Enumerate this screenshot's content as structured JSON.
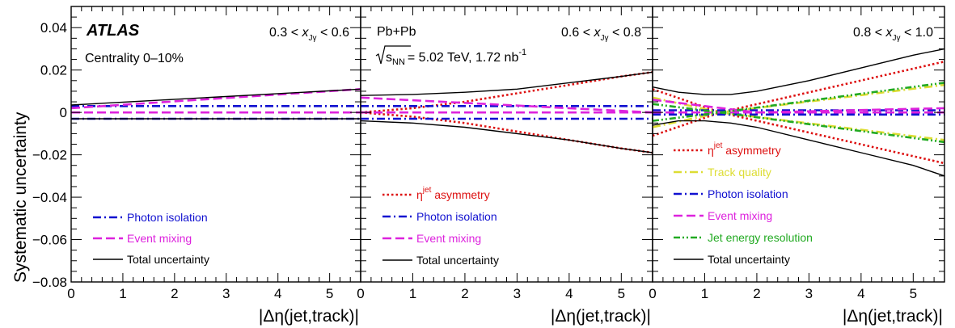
{
  "figure": {
    "ylabel": "Systematic uncertainty",
    "xlabel": "|Δη(jet,track)|",
    "brand": "ATLAS",
    "centrality": "Centrality 0–10%",
    "system": "Pb+Pb",
    "sqrt_s": "s",
    "sqrt_s_sub": "NN",
    "energy": "= 5.02 TeV, 1.72 nb",
    "lumi_sup": "-1",
    "bin_prefix": "<",
    "bin_var": "x",
    "bin_var_sub": "Jγ"
  },
  "chart_data": [
    {
      "type": "line",
      "panel": "left",
      "bin_lo": "0.3",
      "bin_hi": "0.6",
      "xlim": [
        0,
        5.6
      ],
      "ylim": [
        -0.08,
        0.05
      ],
      "xticks": [
        0,
        1,
        2,
        3,
        4,
        5
      ],
      "yticks": [
        -0.08,
        -0.06,
        -0.04,
        -0.02,
        0,
        0.02,
        0.04
      ],
      "ytick_labels": [
        "−0.08",
        "−0.06",
        "−0.04",
        "−0.02",
        "0",
        "0.02",
        "0.04"
      ],
      "grid": false,
      "legend_position": "bottom-left",
      "series": [
        {
          "name": "Photon isolation",
          "color": "#1010d0",
          "style": "dashdot",
          "x": [
            0,
            5.6
          ],
          "upper": [
            0.003,
            0.003
          ],
          "lower": [
            -0.003,
            -0.003
          ]
        },
        {
          "name": "Event mixing",
          "color": "#dd22dd",
          "style": "dashed",
          "x": [
            0,
            5.6
          ],
          "upper": [
            0.002,
            0.011
          ],
          "lower": [
            0.0,
            0.0
          ]
        },
        {
          "name": "Total uncertainty",
          "color": "#000000",
          "style": "solid",
          "x": [
            0,
            5.6
          ],
          "upper": [
            0.0035,
            0.011
          ],
          "lower": [
            -0.003,
            -0.003
          ]
        }
      ]
    },
    {
      "type": "line",
      "panel": "middle",
      "bin_lo": "0.6",
      "bin_hi": "0.8",
      "xlim": [
        0,
        5.6
      ],
      "ylim": [
        -0.08,
        0.05
      ],
      "xticks": [
        0,
        1,
        2,
        3,
        4,
        5
      ],
      "grid": false,
      "legend_position": "bottom-left",
      "series": [
        {
          "name": "η^jet asymmetry",
          "color": "#dd1111",
          "style": "dotted",
          "x": [
            0,
            1,
            2,
            3,
            4,
            5,
            5.6
          ],
          "upper": [
            0.0,
            0.002,
            0.005,
            0.009,
            0.013,
            0.017,
            0.019
          ],
          "lower": [
            0.0,
            -0.002,
            -0.005,
            -0.009,
            -0.013,
            -0.017,
            -0.019
          ]
        },
        {
          "name": "Photon isolation",
          "color": "#1010d0",
          "style": "dashdot",
          "x": [
            0,
            5.6
          ],
          "upper": [
            0.003,
            0.003
          ],
          "lower": [
            -0.003,
            -0.003
          ]
        },
        {
          "name": "Event mixing",
          "color": "#dd22dd",
          "style": "dashed",
          "x": [
            0,
            5.6
          ],
          "upper": [
            0.007,
            0.0
          ],
          "lower": [
            0.0,
            0.0
          ]
        },
        {
          "name": "Total uncertainty",
          "color": "#000000",
          "style": "solid",
          "x": [
            0,
            1,
            2,
            3,
            4,
            5,
            5.6
          ],
          "upper": [
            0.008,
            0.0085,
            0.0095,
            0.011,
            0.014,
            0.017,
            0.019
          ],
          "lower": [
            -0.004,
            -0.005,
            -0.007,
            -0.01,
            -0.013,
            -0.017,
            -0.019
          ]
        }
      ]
    },
    {
      "type": "line",
      "panel": "right",
      "bin_lo": "0.8",
      "bin_hi": "1.0",
      "xlim": [
        0,
        5.6
      ],
      "ylim": [
        -0.08,
        0.05
      ],
      "xticks": [
        0,
        1,
        2,
        3,
        4,
        5
      ],
      "grid": false,
      "legend_position": "bottom-left",
      "series": [
        {
          "name": "η^jet asymmetry",
          "color": "#dd1111",
          "style": "dotted",
          "x": [
            0,
            1.3,
            5.6
          ],
          "upper": [
            0.011,
            0.0,
            0.024
          ],
          "lower": [
            -0.011,
            0.0,
            -0.024
          ]
        },
        {
          "name": "Track quality",
          "color": "#dddd33",
          "style": "dashdot",
          "x": [
            0,
            1.3,
            5.6
          ],
          "upper": [
            0.007,
            0.0,
            0.013
          ],
          "lower": [
            -0.007,
            0.0,
            -0.013
          ]
        },
        {
          "name": "Photon isolation",
          "color": "#1010d0",
          "style": "dashdot",
          "x": [
            0,
            5.6
          ],
          "upper": [
            0.001,
            0.001
          ],
          "lower": [
            -0.001,
            -0.001
          ]
        },
        {
          "name": "Event mixing",
          "color": "#dd22dd",
          "style": "dashed",
          "x": [
            0,
            2,
            5.6
          ],
          "upper": [
            0.006,
            0.0,
            0.002
          ],
          "lower": [
            0.0,
            0.0,
            0.0
          ]
        },
        {
          "name": "Jet energy resolution",
          "color": "#22aa22",
          "style": "dashdotdot",
          "x": [
            0,
            1.3,
            5.6
          ],
          "upper": [
            0.004,
            0.0,
            0.014
          ],
          "lower": [
            -0.004,
            0.0,
            -0.014
          ]
        },
        {
          "name": "Total uncertainty",
          "color": "#000000",
          "style": "solid",
          "x": [
            0,
            0.5,
            1,
            1.5,
            2,
            3,
            4,
            5,
            5.6
          ],
          "upper": [
            0.012,
            0.0095,
            0.0085,
            0.0085,
            0.01,
            0.015,
            0.021,
            0.027,
            0.03
          ],
          "lower": [
            -0.006,
            -0.004,
            -0.004,
            -0.005,
            -0.007,
            -0.013,
            -0.019,
            -0.025,
            -0.03
          ]
        }
      ]
    }
  ]
}
